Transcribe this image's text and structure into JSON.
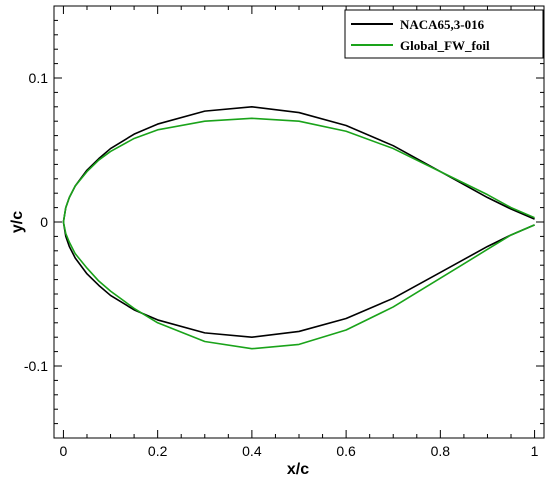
{
  "chart_data": {
    "type": "line",
    "title": "",
    "xlabel": "x/c",
    "ylabel": "y/c",
    "xlim": [
      -0.02,
      1.02
    ],
    "ylim": [
      -0.15,
      0.15
    ],
    "x_ticks": [
      0,
      0.2,
      0.4,
      0.6,
      0.8,
      1
    ],
    "x_tick_labels": [
      "0",
      "0.2",
      "0.4",
      "0.6",
      "0.8",
      "1"
    ],
    "y_ticks": [
      -0.1,
      0,
      0.1
    ],
    "y_tick_labels": [
      "-0.1",
      "0",
      "0.1"
    ],
    "grid": false,
    "legend_position": "top-right",
    "series": [
      {
        "name": "NACA65,3-016",
        "color": "#000000",
        "x": [
          1.0,
          0.95,
          0.9,
          0.85,
          0.8,
          0.7,
          0.6,
          0.5,
          0.4,
          0.3,
          0.2,
          0.15,
          0.1,
          0.075,
          0.05,
          0.025,
          0.0125,
          0.005,
          0.0,
          0.005,
          0.0125,
          0.025,
          0.05,
          0.075,
          0.1,
          0.15,
          0.2,
          0.3,
          0.4,
          0.5,
          0.6,
          0.7,
          0.8,
          0.85,
          0.9,
          0.95,
          1.0
        ],
        "y": [
          0.002,
          0.009,
          0.017,
          0.026,
          0.035,
          0.053,
          0.067,
          0.076,
          0.08,
          0.077,
          0.068,
          0.061,
          0.051,
          0.044,
          0.036,
          0.025,
          0.017,
          0.01,
          0.0,
          -0.01,
          -0.017,
          -0.025,
          -0.036,
          -0.044,
          -0.051,
          -0.061,
          -0.068,
          -0.077,
          -0.08,
          -0.076,
          -0.067,
          -0.053,
          -0.035,
          -0.026,
          -0.017,
          -0.009,
          -0.002
        ]
      },
      {
        "name": "Global_FW_foil",
        "color": "#1aa31a",
        "x": [
          1.0,
          0.95,
          0.9,
          0.85,
          0.8,
          0.7,
          0.6,
          0.5,
          0.4,
          0.3,
          0.2,
          0.15,
          0.1,
          0.075,
          0.05,
          0.025,
          0.0125,
          0.005,
          0.0,
          0.005,
          0.0125,
          0.025,
          0.05,
          0.075,
          0.1,
          0.15,
          0.2,
          0.3,
          0.4,
          0.5,
          0.6,
          0.7,
          0.8,
          0.85,
          0.9,
          0.95,
          1.0
        ],
        "y": [
          0.003,
          0.01,
          0.019,
          0.027,
          0.035,
          0.051,
          0.063,
          0.07,
          0.072,
          0.07,
          0.064,
          0.058,
          0.049,
          0.043,
          0.035,
          0.025,
          0.017,
          0.01,
          0.0,
          -0.008,
          -0.014,
          -0.022,
          -0.032,
          -0.041,
          -0.048,
          -0.06,
          -0.07,
          -0.083,
          -0.088,
          -0.085,
          -0.075,
          -0.059,
          -0.039,
          -0.029,
          -0.019,
          -0.009,
          -0.002
        ]
      }
    ]
  }
}
